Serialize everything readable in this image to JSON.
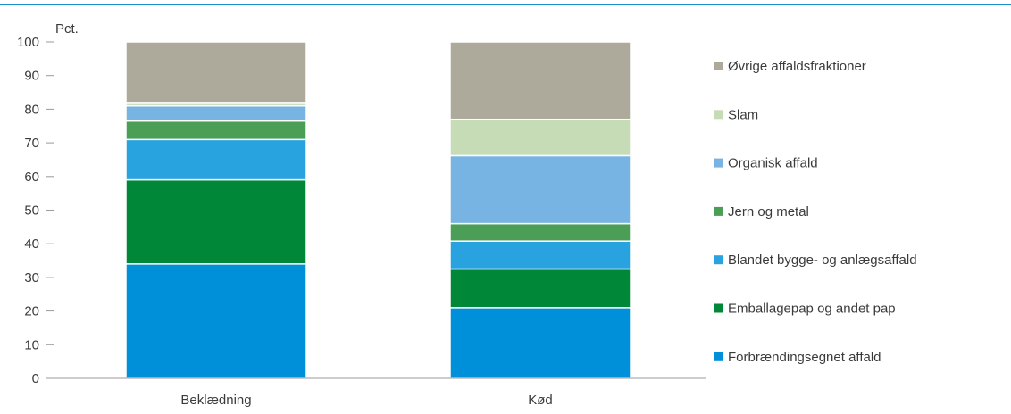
{
  "chart_data": {
    "type": "bar",
    "stacked": true,
    "ylabel": "Pct.",
    "ylim": [
      0,
      100
    ],
    "yticks": [
      0,
      10,
      20,
      30,
      40,
      50,
      60,
      70,
      80,
      90,
      100
    ],
    "grid": false,
    "legend_position": "right",
    "categories": [
      "Beklædning",
      "Kød"
    ],
    "series": [
      {
        "name": "Forbrændingsegnet affald",
        "color": "#0090d9",
        "values": [
          34,
          21
        ]
      },
      {
        "name": "Emballagepap og andet pap",
        "color": "#008737",
        "values": [
          25,
          11.5
        ]
      },
      {
        "name": "Blandet bygge- og anlægsaffald",
        "color": "#28a3e0",
        "values": [
          12,
          8.3
        ]
      },
      {
        "name": "Jern og metal",
        "color": "#4a9e55",
        "values": [
          5.5,
          5.2
        ]
      },
      {
        "name": "Organisk affald",
        "color": "#78b4e3",
        "values": [
          4.5,
          20.2
        ]
      },
      {
        "name": "Slam",
        "color": "#c6dcb6",
        "values": [
          1,
          10.8
        ]
      },
      {
        "name": "Øvrige affaldsfraktioner",
        "color": "#aeaa9b",
        "values": [
          18,
          23
        ]
      }
    ]
  }
}
